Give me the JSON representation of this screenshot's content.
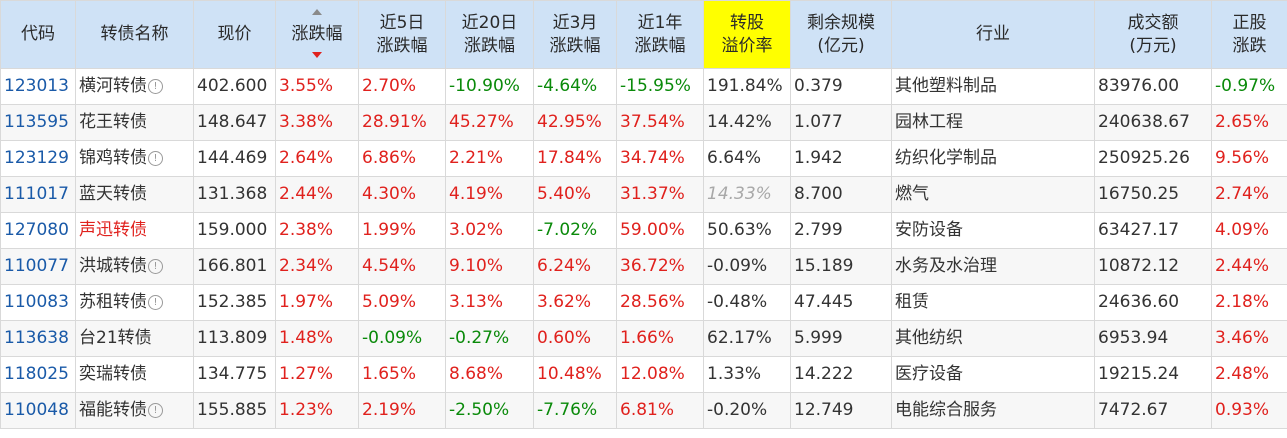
{
  "headers": {
    "code": "代码",
    "name": "转债名称",
    "price": "现价",
    "change": "涨跌幅",
    "d5_1": "近5日",
    "d5_2": "涨跌幅",
    "d20_1": "近20日",
    "d20_2": "涨跌幅",
    "m3_1": "近3月",
    "m3_2": "涨跌幅",
    "y1_1": "近1年",
    "y1_2": "涨跌幅",
    "prem_1": "转股",
    "prem_2": "溢价率",
    "rem_1": "剩余规模",
    "rem_2": "(亿元)",
    "industry": "行业",
    "vol_1": "成交额",
    "vol_2": "(万元)",
    "stock_1": "正股",
    "stock_2": "涨跌"
  },
  "rows": [
    {
      "code": "123013",
      "name": "横河转债",
      "info": "!",
      "price": "402.600",
      "change": "3.55%",
      "d5": "2.70%",
      "d20": "-10.90%",
      "m3": "-4.64%",
      "y1": "-15.95%",
      "premium": "191.84%",
      "remaining": "0.379",
      "industry": "其他塑料制品",
      "volume": "83976.00",
      "stock": "-0.97%"
    },
    {
      "code": "113595",
      "name": "花王转债",
      "info": "",
      "price": "148.647",
      "change": "3.38%",
      "d5": "28.91%",
      "d20": "45.27%",
      "m3": "42.95%",
      "y1": "37.54%",
      "premium": "14.42%",
      "remaining": "1.077",
      "industry": "园林工程",
      "volume": "240638.67",
      "stock": "2.65%"
    },
    {
      "code": "123129",
      "name": "锦鸡转债",
      "info": "!",
      "price": "144.469",
      "change": "2.64%",
      "d5": "6.86%",
      "d20": "2.21%",
      "m3": "17.84%",
      "y1": "34.74%",
      "premium": "6.64%",
      "remaining": "1.942",
      "industry": "纺织化学制品",
      "volume": "250925.26",
      "stock": "9.56%"
    },
    {
      "code": "111017",
      "name": "蓝天转债",
      "info": "",
      "price": "131.368",
      "change": "2.44%",
      "d5": "4.30%",
      "d20": "4.19%",
      "m3": "5.40%",
      "y1": "31.37%",
      "premium": "14.33%",
      "remaining": "8.700",
      "industry": "燃气",
      "volume": "16750.25",
      "stock": "2.74%"
    },
    {
      "code": "127080",
      "name": "声迅转债",
      "info": "",
      "price": "159.000",
      "change": "2.38%",
      "d5": "1.99%",
      "d20": "3.02%",
      "m3": "-7.02%",
      "y1": "59.00%",
      "premium": "50.63%",
      "remaining": "2.799",
      "industry": "安防设备",
      "volume": "63427.17",
      "stock": "4.09%"
    },
    {
      "code": "110077",
      "name": "洪城转债",
      "info": "!",
      "price": "166.801",
      "change": "2.34%",
      "d5": "4.54%",
      "d20": "9.10%",
      "m3": "6.24%",
      "y1": "36.72%",
      "premium": "-0.09%",
      "remaining": "15.189",
      "industry": "水务及水治理",
      "volume": "10872.12",
      "stock": "2.44%"
    },
    {
      "code": "110083",
      "name": "苏租转债",
      "info": "!",
      "price": "152.385",
      "change": "1.97%",
      "d5": "5.09%",
      "d20": "3.13%",
      "m3": "3.62%",
      "y1": "28.56%",
      "premium": "-0.48%",
      "remaining": "47.445",
      "industry": "租赁",
      "volume": "24636.60",
      "stock": "2.18%"
    },
    {
      "code": "113638",
      "name": "台21转债",
      "info": "",
      "price": "113.809",
      "change": "1.48%",
      "d5": "-0.09%",
      "d20": "-0.27%",
      "m3": "0.60%",
      "y1": "1.66%",
      "premium": "62.17%",
      "remaining": "5.999",
      "industry": "其他纺织",
      "volume": "6953.94",
      "stock": "3.46%"
    },
    {
      "code": "118025",
      "name": "奕瑞转债",
      "info": "",
      "price": "134.775",
      "change": "1.27%",
      "d5": "1.65%",
      "d20": "8.68%",
      "m3": "10.48%",
      "y1": "12.08%",
      "premium": "1.33%",
      "remaining": "14.222",
      "industry": "医疗设备",
      "volume": "19215.24",
      "stock": "2.48%"
    },
    {
      "code": "110048",
      "name": "福能转债",
      "info": "!",
      "price": "155.885",
      "change": "1.23%",
      "d5": "2.19%",
      "d20": "-2.50%",
      "m3": "-7.76%",
      "y1": "6.81%",
      "premium": "-0.20%",
      "remaining": "12.749",
      "industry": "电能综合服务",
      "volume": "7472.67",
      "stock": "0.93%"
    }
  ],
  "colors": {
    "up": "#e0211d",
    "down": "#0a8a0a",
    "code": "#1a5aa8",
    "header_bg": "#cfe2f6",
    "highlight": "#ffff00"
  }
}
